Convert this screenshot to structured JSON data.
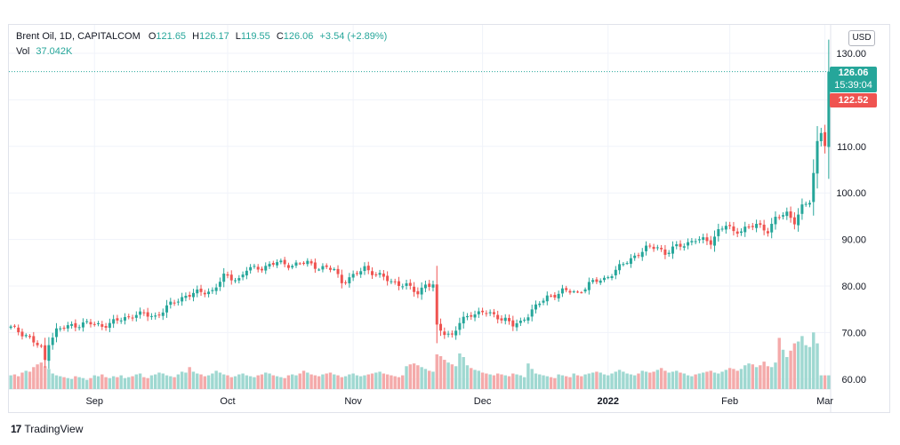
{
  "legend": {
    "symbol": "Brent Oil, 1D, CAPITALCOM",
    "open_label": "O",
    "open": "121.65",
    "high_label": "H",
    "high": "126.17",
    "low_label": "L",
    "low": "119.55",
    "close_label": "C",
    "close": "126.06",
    "change": "+3.54 (+2.89%)",
    "vol_label": "Vol",
    "vol": "37.042K"
  },
  "currency_button": "USD",
  "last_price_tag": {
    "price": "126.06",
    "countdown": "15:39:04"
  },
  "prev_price_tag": "122.52",
  "branding": {
    "logo_mark": "17",
    "name": "TradingView"
  },
  "colors": {
    "up": "#26a69a",
    "down": "#ef5350",
    "vol_up": "#9fd8d1",
    "vol_down": "#f4aaaa",
    "grid": "#f0f3fa"
  },
  "chart_data": {
    "type": "candlestick",
    "title": "Brent Oil, 1D, CAPITALCOM",
    "y_axis": {
      "ticks": [
        "130.00",
        "110.00",
        "100.00",
        "90.00",
        "80.00",
        "70.00",
        "60.00"
      ],
      "range": [
        58,
        132
      ]
    },
    "x_axis": {
      "ticks": [
        "Sep",
        "Oct",
        "Nov",
        "Dec",
        "2022",
        "Feb",
        "Mar"
      ]
    },
    "grid": true,
    "current_price": 126.06,
    "anchors": [
      [
        0,
        71.0
      ],
      [
        4,
        69.5
      ],
      [
        8,
        66.5
      ],
      [
        9,
        64.0
      ],
      [
        10,
        68.0
      ],
      [
        12,
        70.5
      ],
      [
        16,
        71.5
      ],
      [
        20,
        72.0
      ],
      [
        24,
        71.5
      ],
      [
        28,
        72.5
      ],
      [
        33,
        74.0
      ],
      [
        38,
        73.5
      ],
      [
        42,
        76.0
      ],
      [
        46,
        78.0
      ],
      [
        49,
        78.5
      ],
      [
        53,
        79.0
      ],
      [
        56,
        82.0
      ],
      [
        60,
        81.5
      ],
      [
        62,
        83.5
      ],
      [
        66,
        84.0
      ],
      [
        70,
        85.0
      ],
      [
        74,
        84.5
      ],
      [
        78,
        85.0
      ],
      [
        81,
        84.0
      ],
      [
        85,
        83.5
      ],
      [
        87,
        81.0
      ],
      [
        90,
        82.0
      ],
      [
        93,
        84.0
      ],
      [
        96,
        82.5
      ],
      [
        100,
        81.0
      ],
      [
        104,
        80.0
      ],
      [
        107,
        78.5
      ],
      [
        109,
        80.5
      ],
      [
        111,
        80.0
      ],
      [
        112,
        71.0
      ],
      [
        114,
        70.0
      ],
      [
        116,
        69.5
      ],
      [
        118,
        72.0
      ],
      [
        121,
        74.0
      ],
      [
        124,
        74.5
      ],
      [
        127,
        73.5
      ],
      [
        130,
        73.0
      ],
      [
        132,
        71.5
      ],
      [
        134,
        72.0
      ],
      [
        137,
        75.0
      ],
      [
        141,
        77.5
      ],
      [
        145,
        79.0
      ],
      [
        149,
        78.5
      ],
      [
        152,
        80.5
      ],
      [
        156,
        81.5
      ],
      [
        160,
        84.0
      ],
      [
        164,
        86.5
      ],
      [
        167,
        88.0
      ],
      [
        170,
        88.5
      ],
      [
        172,
        87.0
      ],
      [
        174,
        88.0
      ],
      [
        177,
        89.0
      ],
      [
        180,
        90.0
      ],
      [
        184,
        89.5
      ],
      [
        186,
        92.0
      ],
      [
        188,
        93.0
      ],
      [
        190,
        91.5
      ],
      [
        193,
        92.5
      ],
      [
        196,
        93.0
      ],
      [
        199,
        92.0
      ],
      [
        201,
        94.5
      ],
      [
        204,
        95.5
      ],
      [
        206,
        94.0
      ],
      [
        208,
        97.0
      ],
      [
        210,
        98.0
      ],
      [
        211,
        104.0
      ],
      [
        212,
        111.0
      ],
      [
        213,
        113.5
      ],
      [
        214,
        110.5
      ],
      [
        215,
        116.0
      ]
    ],
    "volume_scale": [
      0,
      7
    ],
    "volume_values": [
      1.5,
      1.6,
      1.4,
      1.8,
      2.0,
      1.9,
      2.4,
      2.7,
      2.9,
      2.5,
      2.2,
      1.7,
      1.5,
      1.4,
      1.3,
      1.2,
      1.1,
      1.4,
      1.3,
      1.2,
      1.0,
      1.2,
      1.5,
      1.4,
      1.6,
      1.3,
      1.2,
      1.4,
      1.3,
      1.5,
      1.2,
      1.3,
      1.4,
      1.6,
      1.7,
      1.3,
      1.2,
      1.5,
      1.6,
      1.8,
      1.7,
      1.5,
      1.4,
      1.3,
      1.6,
      1.9,
      1.8,
      2.4,
      1.9,
      1.7,
      1.6,
      1.4,
      1.5,
      1.7,
      2.0,
      1.8,
      1.6,
      1.5,
      1.3,
      1.4,
      1.6,
      1.7,
      1.5,
      1.4,
      1.3,
      1.5,
      1.6,
      1.8,
      1.7,
      1.5,
      1.4,
      1.3,
      1.2,
      1.5,
      1.6,
      1.5,
      1.7,
      2.0,
      1.8,
      1.6,
      1.5,
      1.4,
      1.6,
      1.7,
      1.8,
      1.6,
      1.5,
      1.3,
      1.4,
      1.6,
      1.7,
      1.5,
      1.4,
      1.5,
      1.6,
      1.7,
      1.8,
      1.9,
      1.7,
      1.6,
      1.5,
      1.4,
      1.3,
      1.5,
      2.5,
      2.7,
      2.8,
      2.6,
      2.4,
      2.2,
      2.0,
      1.9,
      3.8,
      3.6,
      3.2,
      2.9,
      2.7,
      2.5,
      3.9,
      3.5,
      2.6,
      2.3,
      2.1,
      2.0,
      1.8,
      1.7,
      1.6,
      1.5,
      1.7,
      1.6,
      1.5,
      1.4,
      1.7,
      1.6,
      1.5,
      1.3,
      2.8,
      2.2,
      1.7,
      1.6,
      1.5,
      1.4,
      1.3,
      1.2,
      1.6,
      1.5,
      1.4,
      1.3,
      1.7,
      1.5,
      1.4,
      1.6,
      1.7,
      1.8,
      1.9,
      1.8,
      1.6,
      1.5,
      1.7,
      1.9,
      2.1,
      1.9,
      1.7,
      1.6,
      1.5,
      1.7,
      2.0,
      1.9,
      1.8,
      1.9,
      2.1,
      2.3,
      2.0,
      1.8,
      1.9,
      2.0,
      1.8,
      1.7,
      1.5,
      1.4,
      1.6,
      1.7,
      1.8,
      1.9,
      2.0,
      1.8,
      1.7,
      1.9,
      2.1,
      2.3,
      2.2,
      2.0,
      2.2,
      2.6,
      2.8,
      2.7,
      2.4,
      2.6,
      3.0,
      2.5,
      2.4,
      2.9,
      5.6,
      4.3,
      3.5,
      4.2,
      5.0,
      5.2,
      5.8,
      4.8,
      4.6,
      6.2,
      5.0
    ]
  }
}
